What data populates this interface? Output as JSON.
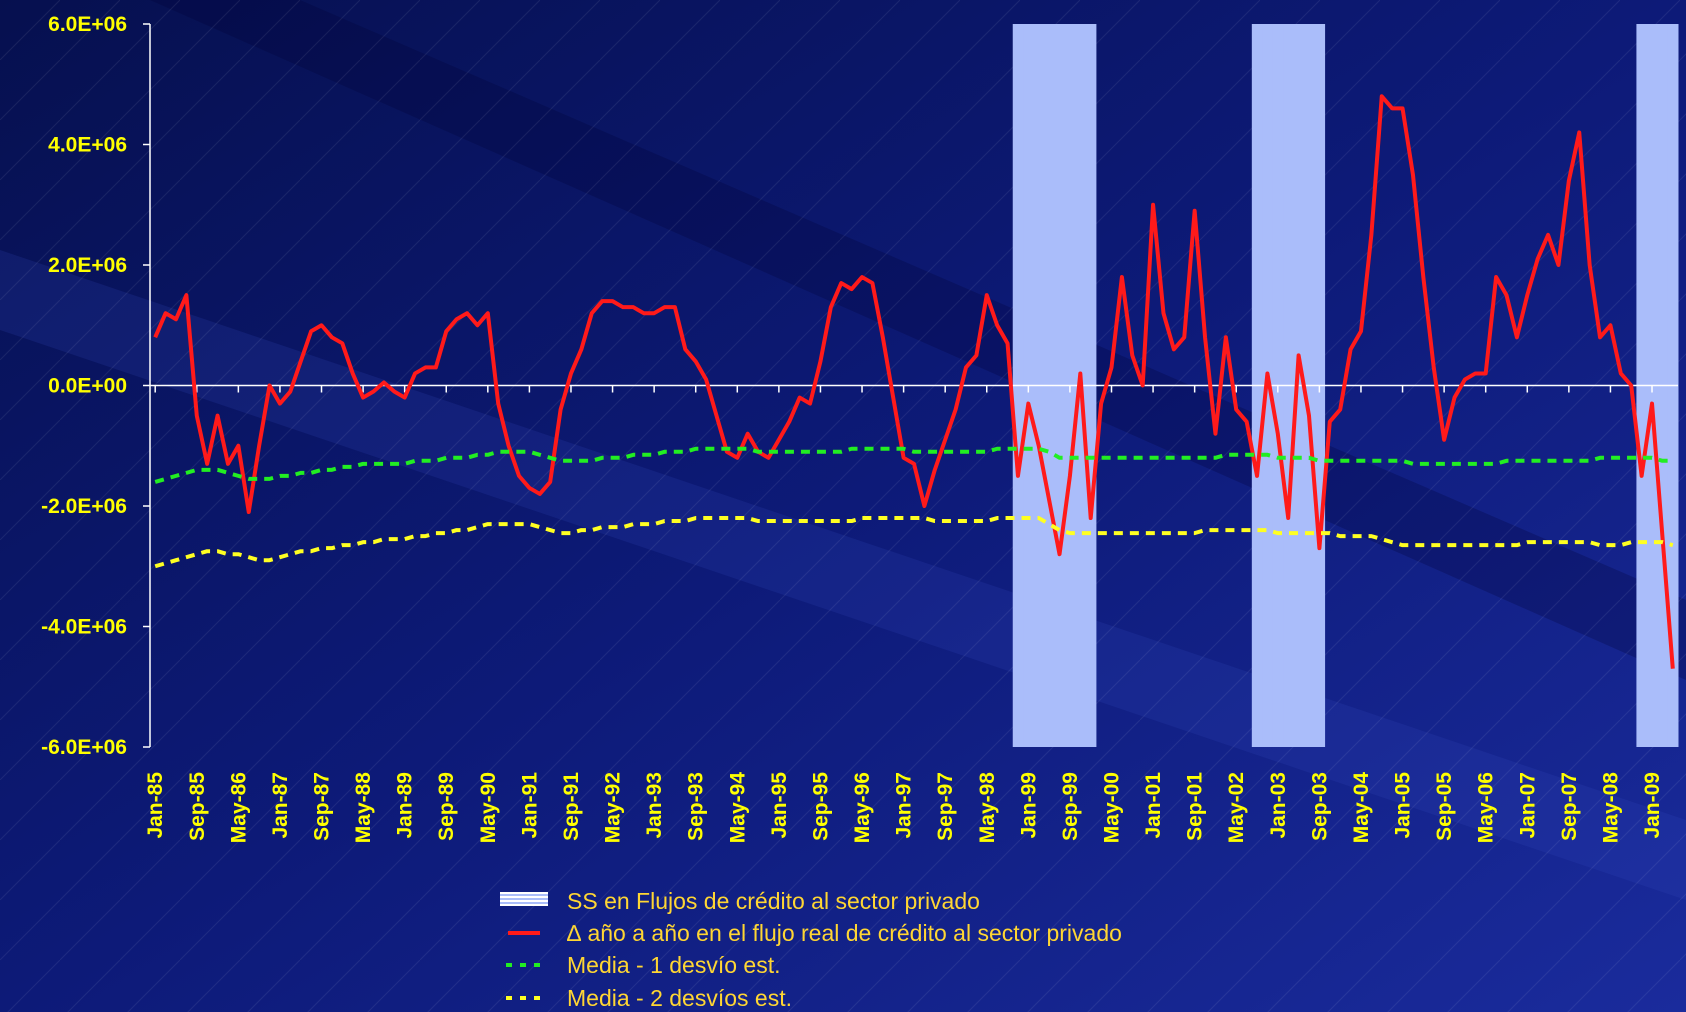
{
  "chart_data": {
    "type": "line",
    "categories": [
      "Jan-85",
      null,
      null,
      null,
      "Sep-85",
      null,
      null,
      null,
      "May-86",
      null,
      null,
      null,
      "Jan-87",
      null,
      null,
      null,
      "Sep-87",
      null,
      null,
      null,
      "May-88",
      null,
      null,
      null,
      "Jan-89",
      null,
      null,
      null,
      "Sep-89",
      null,
      null,
      null,
      "May-90",
      null,
      null,
      null,
      "Jan-91",
      null,
      null,
      null,
      "Sep-91",
      null,
      null,
      null,
      "May-92",
      null,
      null,
      null,
      "Jan-93",
      null,
      null,
      null,
      "Sep-93",
      null,
      null,
      null,
      "May-94",
      null,
      null,
      null,
      "Jan-95",
      null,
      null,
      null,
      "Sep-95",
      null,
      null,
      null,
      "May-96",
      null,
      null,
      null,
      "Jan-97",
      null,
      null,
      null,
      "Sep-97",
      null,
      null,
      null,
      "May-98",
      null,
      null,
      null,
      "Jan-99",
      null,
      null,
      null,
      "Sep-99",
      null,
      null,
      null,
      "May-00",
      null,
      null,
      null,
      "Jan-01",
      null,
      null,
      null,
      "Sep-01",
      null,
      null,
      null,
      "May-02",
      null,
      null,
      null,
      "Jan-03",
      null,
      null,
      null,
      "Sep-03",
      null,
      null,
      null,
      "May-04",
      null,
      null,
      null,
      "Jan-05",
      null,
      null,
      null,
      "Sep-05",
      null,
      null,
      null,
      "May-06",
      null,
      null,
      null,
      "Jan-07",
      null,
      null,
      null,
      "Sep-07",
      null,
      null,
      null,
      "May-08",
      null,
      null,
      null,
      "Jan-09",
      null,
      null
    ],
    "ylim": [
      -6000000.0,
      6000000.0
    ],
    "yticks": [
      {
        "value": -6000000.0,
        "label": "-6.0E+06"
      },
      {
        "value": -4000000.0,
        "label": "-4.0E+06"
      },
      {
        "value": -2000000.0,
        "label": "-2.0E+06"
      },
      {
        "value": 0,
        "label": "0.0E+00"
      },
      {
        "value": 2000000.0,
        "label": "2.0E+06"
      },
      {
        "value": 4000000.0,
        "label": "4.0E+06"
      },
      {
        "value": 6000000.0,
        "label": "6.0E+06"
      }
    ],
    "series": [
      {
        "name": "SS en Flujos de crédito al sector privado",
        "type": "bar",
        "color": "#aabdfa",
        "values": [
          null,
          null,
          null,
          null,
          null,
          null,
          null,
          null,
          null,
          null,
          null,
          null,
          null,
          null,
          null,
          null,
          null,
          null,
          null,
          null,
          null,
          null,
          null,
          null,
          null,
          null,
          null,
          null,
          null,
          null,
          null,
          null,
          null,
          null,
          null,
          null,
          null,
          null,
          null,
          null,
          null,
          null,
          null,
          null,
          null,
          null,
          null,
          null,
          null,
          null,
          null,
          null,
          null,
          null,
          null,
          null,
          null,
          null,
          null,
          null,
          null,
          null,
          null,
          null,
          null,
          null,
          null,
          null,
          null,
          null,
          null,
          null,
          null,
          null,
          null,
          null,
          null,
          null,
          null,
          null,
          null,
          null,
          null,
          6000000.0,
          6000000.0,
          6000000.0,
          6000000.0,
          6000000.0,
          6000000.0,
          6000000.0,
          6000000.0,
          null,
          null,
          null,
          null,
          null,
          null,
          null,
          null,
          null,
          null,
          null,
          null,
          null,
          null,
          null,
          6000000.0,
          6000000.0,
          6000000.0,
          6000000.0,
          6000000.0,
          6000000.0,
          6000000.0,
          null,
          null,
          null,
          null,
          null,
          null,
          null,
          null,
          null,
          null,
          null,
          null,
          null,
          null,
          null,
          null,
          null,
          null,
          null,
          null,
          null,
          null,
          null,
          null,
          null,
          null,
          null,
          null,
          null,
          null,
          6000000.0,
          6000000.0,
          6000000.0,
          6000000.0
        ]
      },
      {
        "name": "∆ año a año en el flujo real de crédito al sector privado",
        "type": "line",
        "color": "#ff1a1a",
        "linestyle": "solid",
        "values": [
          800000.0,
          1200000.0,
          1100000.0,
          1500000.0,
          -500000.0,
          -1300000.0,
          -500000.0,
          -1300000.0,
          -1000000.0,
          -2100000.0,
          -1000000.0,
          0,
          -300000.0,
          -100000.0,
          400000.0,
          900000.0,
          1000000.0,
          800000.0,
          700000.0,
          200000.0,
          -200000.0,
          -100000.0,
          50000.0,
          -100000.0,
          -200000.0,
          200000.0,
          300000.0,
          300000.0,
          900000.0,
          1100000.0,
          1200000.0,
          1000000.0,
          1200000.0,
          -300000.0,
          -1000000.0,
          -1500000.0,
          -1700000.0,
          -1800000.0,
          -1600000.0,
          -400000.0,
          200000.0,
          600000.0,
          1200000.0,
          1400000.0,
          1400000.0,
          1300000.0,
          1300000.0,
          1200000.0,
          1200000.0,
          1300000.0,
          1300000.0,
          600000.0,
          400000.0,
          100000.0,
          -500000.0,
          -1100000.0,
          -1200000.0,
          -800000.0,
          -1100000.0,
          -1200000.0,
          -900000.0,
          -600000.0,
          -200000.0,
          -300000.0,
          400000.0,
          1300000.0,
          1700000.0,
          1600000.0,
          1800000.0,
          1700000.0,
          800000.0,
          -200000.0,
          -1200000.0,
          -1300000.0,
          -2000000.0,
          -1400000.0,
          -900000.0,
          -400000.0,
          300000.0,
          500000.0,
          1500000.0,
          1000000.0,
          700000.0,
          -1500000.0,
          -300000.0,
          -1000000.0,
          -1900000.0,
          -2800000.0,
          -1500000.0,
          200000.0,
          -2200000.0,
          -300000.0,
          300000.0,
          1800000.0,
          500000.0,
          0,
          3000000.0,
          1200000.0,
          600000.0,
          800000.0,
          2900000.0,
          800000.0,
          -800000.0,
          800000.0,
          -400000.0,
          -600000.0,
          -1500000.0,
          200000.0,
          -800000.0,
          -2200000.0,
          500000.0,
          -500000.0,
          -2700000.0,
          -600000.0,
          -400000.0,
          600000.0,
          900000.0,
          2500000.0,
          4800000.0,
          4600000.0,
          4600000.0,
          3500000.0,
          1800000.0,
          300000.0,
          -900000.0,
          -200000.0,
          100000.0,
          200000.0,
          200000.0,
          1800000.0,
          1500000.0,
          800000.0,
          1500000.0,
          2100000.0,
          2500000.0,
          2000000.0,
          3400000.0,
          4200000.0,
          2000000.0,
          800000.0,
          1000000.0,
          200000.0,
          0,
          -1500000.0,
          -300000.0,
          -2500000.0,
          -4700000.0
        ]
      },
      {
        "name": "Media - 1 desvío est.",
        "type": "line",
        "color": "#22ee22",
        "linestyle": "dashed",
        "values": [
          -1600000.0,
          -1550000.0,
          -1500000.0,
          -1450000.0,
          -1400000.0,
          -1400000.0,
          -1400000.0,
          -1450000.0,
          -1500000.0,
          -1550000.0,
          -1550000.0,
          -1550000.0,
          -1500000.0,
          -1500000.0,
          -1450000.0,
          -1450000.0,
          -1400000.0,
          -1400000.0,
          -1350000.0,
          -1350000.0,
          -1300000.0,
          -1300000.0,
          -1300000.0,
          -1300000.0,
          -1300000.0,
          -1250000.0,
          -1250000.0,
          -1250000.0,
          -1200000.0,
          -1200000.0,
          -1200000.0,
          -1150000.0,
          -1150000.0,
          -1100000.0,
          -1100000.0,
          -1100000.0,
          -1100000.0,
          -1150000.0,
          -1200000.0,
          -1250000.0,
          -1250000.0,
          -1250000.0,
          -1250000.0,
          -1200000.0,
          -1200000.0,
          -1200000.0,
          -1150000.0,
          -1150000.0,
          -1150000.0,
          -1100000.0,
          -1100000.0,
          -1100000.0,
          -1050000.0,
          -1050000.0,
          -1050000.0,
          -1050000.0,
          -1050000.0,
          -1050000.0,
          -1100000.0,
          -1100000.0,
          -1100000.0,
          -1100000.0,
          -1100000.0,
          -1100000.0,
          -1100000.0,
          -1100000.0,
          -1100000.0,
          -1050000.0,
          -1050000.0,
          -1050000.0,
          -1050000.0,
          -1050000.0,
          -1050000.0,
          -1100000.0,
          -1100000.0,
          -1100000.0,
          -1100000.0,
          -1100000.0,
          -1100000.0,
          -1100000.0,
          -1100000.0,
          -1050000.0,
          -1050000.0,
          -1050000.0,
          -1050000.0,
          -1050000.0,
          -1100000.0,
          -1200000.0,
          -1200000.0,
          -1200000.0,
          -1200000.0,
          -1200000.0,
          -1200000.0,
          -1200000.0,
          -1200000.0,
          -1200000.0,
          -1200000.0,
          -1200000.0,
          -1200000.0,
          -1200000.0,
          -1200000.0,
          -1200000.0,
          -1200000.0,
          -1150000.0,
          -1150000.0,
          -1150000.0,
          -1150000.0,
          -1150000.0,
          -1200000.0,
          -1200000.0,
          -1200000.0,
          -1200000.0,
          -1250000.0,
          -1250000.0,
          -1250000.0,
          -1250000.0,
          -1250000.0,
          -1250000.0,
          -1250000.0,
          -1250000.0,
          -1250000.0,
          -1300000.0,
          -1300000.0,
          -1300000.0,
          -1300000.0,
          -1300000.0,
          -1300000.0,
          -1300000.0,
          -1300000.0,
          -1300000.0,
          -1250000.0,
          -1250000.0,
          -1250000.0,
          -1250000.0,
          -1250000.0,
          -1250000.0,
          -1250000.0,
          -1250000.0,
          -1250000.0,
          -1200000.0,
          -1200000.0,
          -1200000.0,
          -1200000.0,
          -1200000.0,
          -1200000.0,
          -1250000.0,
          -1250000.0
        ]
      },
      {
        "name": "Media - 2 desvíos est.",
        "type": "line",
        "color": "#ffff22",
        "linestyle": "dashed",
        "values": [
          -3000000.0,
          -2950000.0,
          -2900000.0,
          -2850000.0,
          -2800000.0,
          -2750000.0,
          -2750000.0,
          -2800000.0,
          -2800000.0,
          -2850000.0,
          -2900000.0,
          -2900000.0,
          -2850000.0,
          -2800000.0,
          -2750000.0,
          -2750000.0,
          -2700000.0,
          -2700000.0,
          -2650000.0,
          -2650000.0,
          -2600000.0,
          -2600000.0,
          -2550000.0,
          -2550000.0,
          -2550000.0,
          -2500000.0,
          -2500000.0,
          -2450000.0,
          -2450000.0,
          -2400000.0,
          -2400000.0,
          -2350000.0,
          -2300000.0,
          -2300000.0,
          -2300000.0,
          -2300000.0,
          -2300000.0,
          -2350000.0,
          -2400000.0,
          -2450000.0,
          -2450000.0,
          -2400000.0,
          -2400000.0,
          -2350000.0,
          -2350000.0,
          -2350000.0,
          -2300000.0,
          -2300000.0,
          -2300000.0,
          -2250000.0,
          -2250000.0,
          -2250000.0,
          -2200000.0,
          -2200000.0,
          -2200000.0,
          -2200000.0,
          -2200000.0,
          -2200000.0,
          -2250000.0,
          -2250000.0,
          -2250000.0,
          -2250000.0,
          -2250000.0,
          -2250000.0,
          -2250000.0,
          -2250000.0,
          -2250000.0,
          -2250000.0,
          -2200000.0,
          -2200000.0,
          -2200000.0,
          -2200000.0,
          -2200000.0,
          -2200000.0,
          -2200000.0,
          -2250000.0,
          -2250000.0,
          -2250000.0,
          -2250000.0,
          -2250000.0,
          -2250000.0,
          -2200000.0,
          -2200000.0,
          -2200000.0,
          -2200000.0,
          -2200000.0,
          -2300000.0,
          -2400000.0,
          -2450000.0,
          -2450000.0,
          -2450000.0,
          -2450000.0,
          -2450000.0,
          -2450000.0,
          -2450000.0,
          -2450000.0,
          -2450000.0,
          -2450000.0,
          -2450000.0,
          -2450000.0,
          -2450000.0,
          -2400000.0,
          -2400000.0,
          -2400000.0,
          -2400000.0,
          -2400000.0,
          -2400000.0,
          -2400000.0,
          -2450000.0,
          -2450000.0,
          -2450000.0,
          -2450000.0,
          -2450000.0,
          -2450000.0,
          -2500000.0,
          -2500000.0,
          -2500000.0,
          -2500000.0,
          -2550000.0,
          -2600000.0,
          -2650000.0,
          -2650000.0,
          -2650000.0,
          -2650000.0,
          -2650000.0,
          -2650000.0,
          -2650000.0,
          -2650000.0,
          -2650000.0,
          -2650000.0,
          -2650000.0,
          -2650000.0,
          -2600000.0,
          -2600000.0,
          -2600000.0,
          -2600000.0,
          -2600000.0,
          -2600000.0,
          -2600000.0,
          -2650000.0,
          -2650000.0,
          -2650000.0,
          -2600000.0,
          -2600000.0,
          -2600000.0,
          -2600000.0,
          -2650000.0
        ]
      }
    ]
  }
}
